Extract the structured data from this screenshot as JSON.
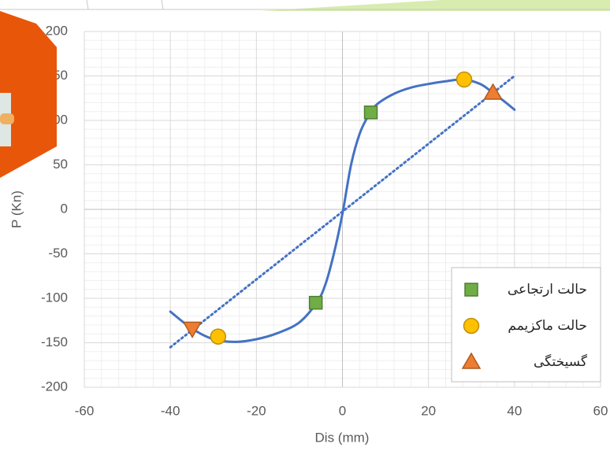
{
  "chart_data": {
    "type": "scatter",
    "x_label": "Dis (mm)",
    "y_label": "P (Kn)",
    "xlim": [
      -60,
      60
    ],
    "xticks": [
      -60,
      -40,
      -20,
      0,
      20,
      40,
      60
    ],
    "ylim": [
      -200,
      200
    ],
    "yticks": [
      -200,
      -150,
      -100,
      -50,
      0,
      50,
      100,
      150,
      200
    ],
    "grid": true,
    "legend": "lower right",
    "series": [
      {
        "style": "smooth",
        "color": "#4472c4",
        "x": [
          -40,
          -35,
          -30,
          -25,
          -20,
          -15,
          -10,
          -6,
          -4,
          -2,
          0,
          2,
          4,
          6,
          8,
          12,
          16,
          20,
          24,
          28,
          32,
          35,
          38,
          40
        ],
        "values": [
          -115,
          -134,
          -146,
          -149,
          -146,
          -139,
          -127,
          -105,
          -85,
          -50,
          -5,
          50,
          85,
          105,
          118,
          130,
          137,
          141,
          144,
          146,
          141,
          131,
          120,
          112
        ]
      },
      {
        "style": "dotted",
        "color": "#4472c4",
        "x": [
          -40,
          40
        ],
        "values": [
          -155,
          150
        ]
      },
      {
        "name": "حالت ارتجاعی",
        "marker": "square",
        "color": "#70ad47",
        "x": [
          -6.2,
          6.6
        ],
        "values": [
          -105,
          109
        ]
      },
      {
        "name": "حالت ماکزیمم",
        "marker": "circle",
        "color": "#ffc000",
        "x": [
          -28.9,
          28.3
        ],
        "values": [
          -143,
          146
        ]
      },
      {
        "name": "گسیختگی",
        "marker": "triangle",
        "color": "#ed7d31",
        "x": [
          -34.9,
          35
        ],
        "values": [
          -134,
          131
        ]
      }
    ]
  }
}
